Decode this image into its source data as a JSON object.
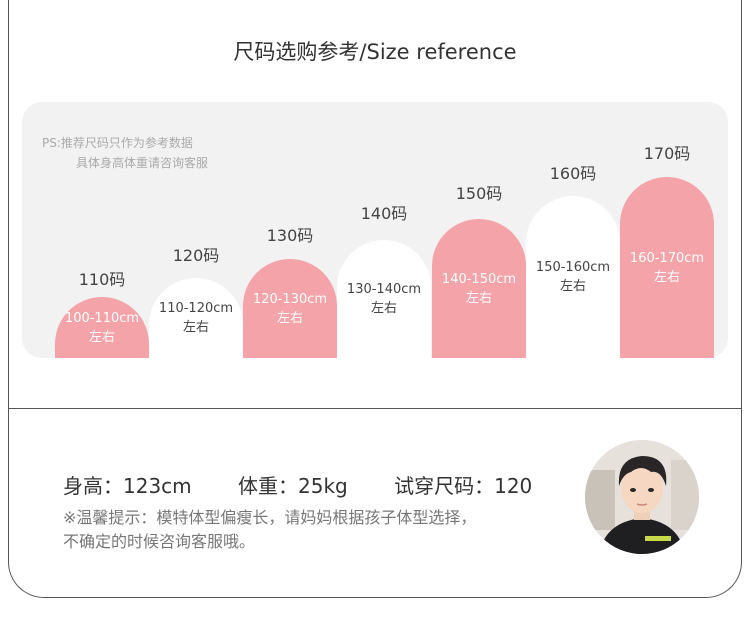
{
  "title": "尺码选购参考/Size reference",
  "note": {
    "line1": "PS:推荐尺码只作为参考数据",
    "line2": "具体身高体重请咨询客服"
  },
  "sizes": [
    {
      "label": "110码",
      "range": "100-110cm",
      "suffix": "左右",
      "style": "pink"
    },
    {
      "label": "120码",
      "range": "110-120cm",
      "suffix": "左右",
      "style": "white"
    },
    {
      "label": "130码",
      "range": "120-130cm",
      "suffix": "左右",
      "style": "pink"
    },
    {
      "label": "140码",
      "range": "130-140cm",
      "suffix": "左右",
      "style": "white"
    },
    {
      "label": "150码",
      "range": "140-150cm",
      "suffix": "左右",
      "style": "pink"
    },
    {
      "label": "160码",
      "range": "150-160cm",
      "suffix": "左右",
      "style": "white"
    },
    {
      "label": "170码",
      "range": "160-170cm",
      "suffix": "左右",
      "style": "pink"
    }
  ],
  "model": {
    "height": "身高：123cm",
    "weight": "体重：25kg",
    "size": "试穿尺码：120"
  },
  "tip": {
    "line1": "※温馨提示：模特体型偏瘦长，请妈妈根据孩子体型选择，",
    "line2": "不确定的时候咨询客服哦。"
  },
  "colors": {
    "pink": "#f4a3a8",
    "panel": "#f2f2f2"
  }
}
